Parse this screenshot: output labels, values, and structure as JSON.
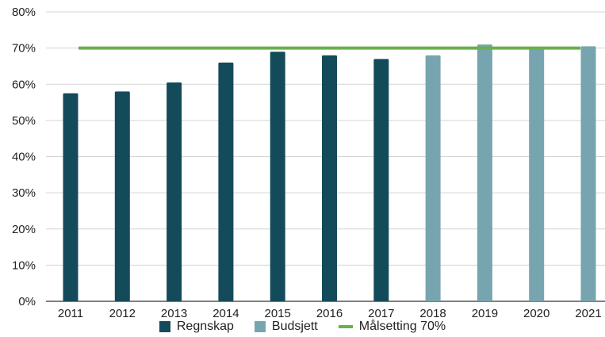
{
  "chart_data": {
    "type": "bar",
    "categories": [
      "2011",
      "2012",
      "2013",
      "2014",
      "2015",
      "2016",
      "2017",
      "2018",
      "2019",
      "2020",
      "2021"
    ],
    "series": [
      {
        "name": "Regnskap",
        "color": "#144b5a",
        "values": [
          57.5,
          58,
          60.5,
          66,
          69,
          68,
          67,
          null,
          null,
          null,
          null
        ]
      },
      {
        "name": "Budsjett",
        "color": "#77a5af",
        "values": [
          null,
          null,
          null,
          null,
          null,
          null,
          null,
          68,
          71,
          70,
          70.5
        ]
      }
    ],
    "target_line": {
      "name": "Målsetting 70%",
      "value": 70,
      "color": "#6ab04c"
    },
    "yticks": [
      "0%",
      "10%",
      "20%",
      "30%",
      "40%",
      "50%",
      "60%",
      "70%",
      "80%"
    ],
    "ylim": [
      0,
      80
    ],
    "grid": true,
    "legend_position": "bottom",
    "title": "",
    "xlabel": "",
    "ylabel": ""
  }
}
